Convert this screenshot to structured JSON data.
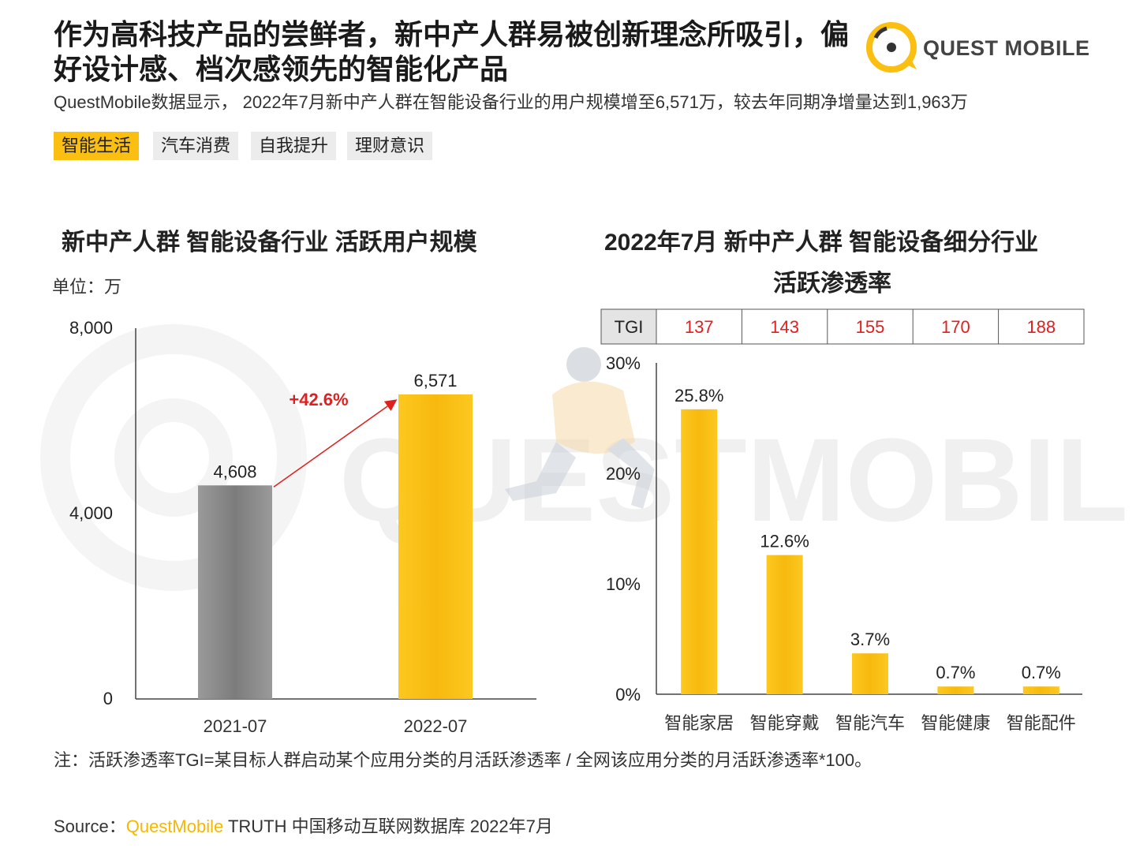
{
  "header": {
    "headline": "作为高科技产品的尝鲜者，新中产人群易被创新理念所吸引，偏好设计感、档次感领先的智能化产品",
    "subtitle": "QuestMobile数据显示， 2022年7月新中产人群在智能设备行业的用户规模增至6,571万，较去年同期净增量达到1,963万",
    "logo_text": "QUEST MOBILE"
  },
  "tabs": [
    {
      "label": "智能生活",
      "active": true
    },
    {
      "label": "汽车消费",
      "active": false
    },
    {
      "label": "自我提升",
      "active": false
    },
    {
      "label": "理财意识",
      "active": false
    }
  ],
  "watermark": "QUESTMOBILE",
  "colors": {
    "accent": "#fbbf12",
    "gray_bar": "#8a8a8a",
    "red": "#e02020"
  },
  "chart_data": [
    {
      "type": "bar",
      "title": "新中产人群 智能设备行业 活跃用户规模",
      "unit_label": "单位：万",
      "categories": [
        "2021-07",
        "2022-07"
      ],
      "values": [
        4608,
        6571
      ],
      "value_labels": [
        "4,608",
        "6,571"
      ],
      "yticks": [
        "0",
        "4,000",
        "8,000"
      ],
      "ylim": [
        0,
        8000
      ],
      "growth_label": "+42.6%",
      "bar_colors": [
        "gray",
        "yellow"
      ],
      "grid": false
    },
    {
      "type": "bar",
      "title_line1": "2022年7月 新中产人群 智能设备细分行业",
      "title_line2": "活跃渗透率",
      "categories": [
        "智能家居",
        "智能穿戴",
        "智能汽车",
        "智能健康",
        "智能配件"
      ],
      "values": [
        25.8,
        12.6,
        3.7,
        0.7,
        0.7
      ],
      "value_labels": [
        "25.8%",
        "12.6%",
        "3.7%",
        "0.7%",
        "0.7%"
      ],
      "yticks": [
        "0%",
        "10%",
        "20%",
        "30%"
      ],
      "ylim": [
        0,
        30
      ],
      "tgi_label": "TGI",
      "tgi": [
        "137",
        "143",
        "155",
        "170",
        "188"
      ],
      "grid": false
    }
  ],
  "footer": {
    "note": "注：活跃渗透率TGI=某目标人群启动某个应用分类的月活跃渗透率 / 全网该应用分类的月活跃渗透率*100。",
    "source_prefix": "Source：",
    "source_brand": "QuestMobile",
    "source_rest": " TRUTH 中国移动互联网数据库 2022年7月"
  }
}
